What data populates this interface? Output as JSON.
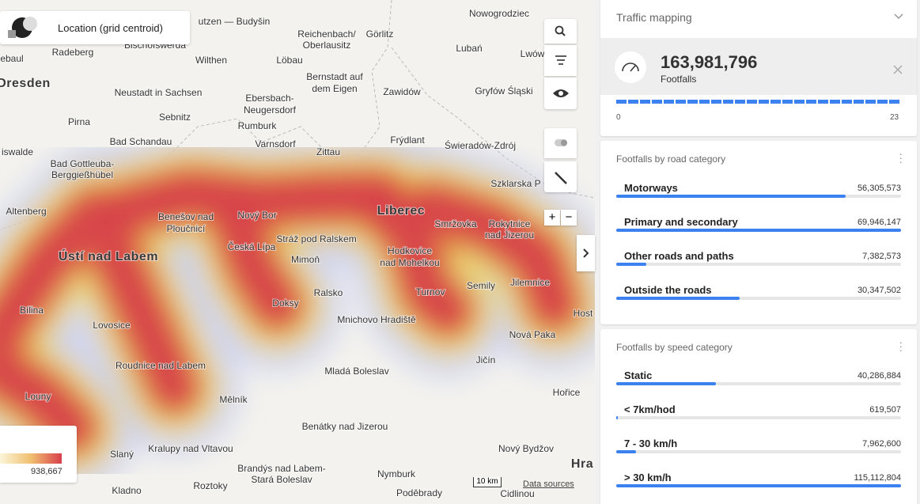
{
  "location_card": {
    "title": "Location (grid centroid)"
  },
  "map": {
    "labels": [
      "utzen — Budyšin",
      "Nowogrodziec",
      "ebaul",
      "Radeberg",
      "Bischofswerda",
      "Wilthen",
      "Reichenbach/",
      "Oberlausitz",
      "Görlitz",
      "Lubań",
      "Lwów",
      "Löbau",
      "Dresden",
      "Neustadt in Sachsen",
      "Bernstadt auf",
      "dem Eigen",
      "Zawidów",
      "Gryfów Śląski",
      "Ebersbach-",
      "Neugersdorf",
      "Pirna",
      "Sebnitz",
      "Rumburk",
      "Bad Schandau",
      "Varnsdorf",
      "Zittau",
      "Frýdlant",
      "Świeradów-Zdrój",
      "iswalde",
      "Bad Gottleuba-",
      "Berggießhübel",
      "Szklarska P",
      "Altenberg",
      "Benešov nad",
      "Ploučnicí",
      "Nový Bor",
      "Liberec",
      "Smržovka",
      "Rokytnice",
      "nad Jizerou",
      "Ústí nad Labem",
      "Česká Lípa",
      "Stráž pod Ralskem",
      "Mimoň",
      "Hodkovice",
      "nad Mohelkou",
      "Semily",
      "Jilemnice",
      "Bílina",
      "Doksy",
      "Ralsko",
      "Turnov",
      "Lovosice",
      "Mnichovo Hradiště",
      "Host",
      "Nová Paka",
      "Roudnice nad Labem",
      "Jičín",
      "Mladá Boleslav",
      "Louny",
      "Mělník",
      "Hořice",
      "Benátky nad Jizerou",
      "Slaný",
      "Kralupy nad Vltavou",
      "Nový Bydžov",
      "Hra",
      "Brandýs nad Labem-",
      "Stará Boleslav",
      "Nymburk",
      "Roztoky",
      "Kladno",
      "Poděbrady",
      "Cidlinou"
    ],
    "legend_max": "938,667",
    "scale": "10 km",
    "attribution": "Data sources"
  },
  "panel": {
    "title": "Traffic mapping",
    "total": "163,981,796",
    "total_label": "Footfalls",
    "hour_axis": [
      "0",
      "23"
    ],
    "road_category": {
      "title": "Footfalls by road category",
      "categories": [
        "Motorways",
        "Primary and secondary",
        "Other roads and paths",
        "Outside the roads"
      ],
      "values": [
        56305573,
        69946147,
        7382573,
        30347502
      ],
      "value_labels": [
        "56,305,573",
        "69,946,147",
        "7,382,573",
        "30,347,502"
      ]
    },
    "speed_category": {
      "title": "Footfalls by speed category",
      "categories": [
        "Static",
        "< 7km/hod",
        "7 - 30 km/h",
        "> 30 km/h"
      ],
      "values": [
        40286884,
        619507,
        7962600,
        115112804
      ],
      "value_labels": [
        "40,286,884",
        "619,507",
        "7,962,600",
        "115,112,804"
      ]
    }
  }
}
